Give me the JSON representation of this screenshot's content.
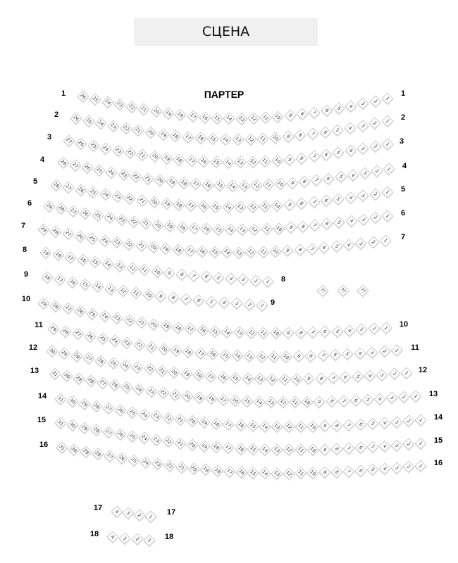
{
  "stage_label": "СЦЕНА",
  "hall_label": "ПАРТЕР",
  "colors": {
    "seat_border": "#c9c9c9",
    "stage_bg": "#f0f0f0"
  },
  "rows": [
    {
      "left": "1",
      "right": "1",
      "seats": [
        26,
        25,
        24,
        23,
        22,
        21,
        20,
        19,
        18,
        17,
        16,
        15,
        14,
        13,
        12,
        11,
        10,
        9,
        8,
        7,
        6,
        5,
        4,
        3,
        2,
        1
      ]
    },
    {
      "left": "2",
      "right": "2",
      "seats": [
        26,
        25,
        24,
        23,
        22,
        21,
        20,
        19,
        18,
        17,
        16,
        15,
        14,
        13,
        12,
        11,
        10,
        9,
        8,
        7,
        6,
        5,
        4,
        3,
        2,
        1
      ]
    },
    {
      "left": "3",
      "right": "3",
      "seats": [
        27,
        26,
        25,
        24,
        23,
        22,
        21,
        20,
        19,
        18,
        17,
        16,
        15,
        14,
        13,
        12,
        11,
        10,
        9,
        8,
        7,
        6,
        5,
        4,
        3,
        2,
        1
      ]
    },
    {
      "left": "4",
      "right": "4",
      "seats": [
        28,
        27,
        26,
        25,
        24,
        23,
        22,
        21,
        20,
        19,
        18,
        17,
        16,
        15,
        14,
        13,
        12,
        11,
        10,
        9,
        8,
        7,
        6,
        5,
        4,
        3,
        2,
        1
      ]
    },
    {
      "left": "5",
      "right": "5",
      "seats": [
        28,
        27,
        26,
        25,
        24,
        23,
        22,
        21,
        20,
        19,
        18,
        17,
        16,
        15,
        14,
        13,
        12,
        11,
        10,
        9,
        8,
        7,
        6,
        5,
        4,
        3,
        2,
        1
      ]
    },
    {
      "left": "6",
      "right": "6",
      "seats": [
        29,
        28,
        27,
        26,
        25,
        24,
        23,
        22,
        21,
        20,
        19,
        18,
        17,
        16,
        15,
        14,
        13,
        12,
        11,
        10,
        9,
        8,
        7,
        6,
        5,
        4,
        3,
        2,
        1
      ]
    },
    {
      "left": "7",
      "right": "7",
      "seats": [
        29,
        28,
        27,
        26,
        25,
        24,
        23,
        22,
        21,
        20,
        19,
        18,
        17,
        16,
        15,
        14,
        13,
        12,
        11,
        10,
        9,
        8,
        7,
        6,
        5,
        4,
        3,
        2,
        1
      ]
    },
    {
      "left": "8",
      "right": "8",
      "seats": [
        19,
        18,
        17,
        16,
        15,
        14,
        13,
        12,
        11,
        10,
        9,
        8,
        7,
        6,
        5,
        4,
        3,
        2,
        1
      ]
    },
    {
      "left": "9",
      "right": "9",
      "seats": [
        18,
        17,
        16,
        15,
        14,
        13,
        12,
        11,
        10,
        9,
        8,
        7,
        6,
        5,
        4,
        3,
        2,
        1
      ]
    },
    {
      "left": "10",
      "right": "10",
      "seats": [
        29,
        28,
        27,
        26,
        25,
        24,
        23,
        22,
        21,
        20,
        19,
        18,
        17,
        16,
        15,
        14,
        13,
        12,
        11,
        10,
        9,
        8,
        7,
        6,
        5,
        4,
        3,
        2,
        1
      ]
    },
    {
      "left": "11",
      "right": "11",
      "seats": [
        29,
        28,
        27,
        26,
        25,
        24,
        23,
        22,
        21,
        20,
        19,
        18,
        17,
        16,
        15,
        14,
        13,
        12,
        11,
        10,
        9,
        8,
        7,
        6,
        5,
        4,
        3,
        2,
        1
      ]
    },
    {
      "left": "12",
      "right": "12",
      "seats": [
        30,
        29,
        28,
        27,
        26,
        25,
        24,
        23,
        22,
        21,
        20,
        19,
        18,
        17,
        16,
        15,
        14,
        13,
        12,
        11,
        10,
        9,
        8,
        7,
        6,
        5,
        4,
        3,
        2,
        1
      ]
    },
    {
      "left": "13",
      "right": "13",
      "seats": [
        31,
        30,
        29,
        28,
        27,
        26,
        25,
        24,
        23,
        22,
        21,
        20,
        19,
        18,
        17,
        16,
        15,
        14,
        13,
        12,
        11,
        10,
        9,
        8,
        7,
        6,
        5,
        4,
        3,
        2,
        1
      ]
    },
    {
      "left": "14",
      "right": "14",
      "seats": [
        31,
        30,
        29,
        28,
        27,
        26,
        25,
        24,
        23,
        22,
        21,
        20,
        19,
        18,
        17,
        16,
        15,
        14,
        13,
        12,
        11,
        10,
        9,
        8,
        7,
        6,
        5,
        4,
        3,
        2,
        1
      ]
    },
    {
      "left": "15",
      "right": "15",
      "seats": [
        31,
        30,
        29,
        28,
        27,
        26,
        25,
        24,
        23,
        22,
        21,
        20,
        19,
        18,
        17,
        16,
        15,
        14,
        13,
        12,
        11,
        10,
        9,
        8,
        7,
        6,
        5,
        4,
        3,
        2,
        1
      ]
    },
    {
      "left": "16",
      "right": "16",
      "seats": [
        31,
        30,
        29,
        28,
        27,
        26,
        25,
        24,
        23,
        22,
        21,
        20,
        19,
        18,
        17,
        16,
        15,
        14,
        13,
        12,
        11,
        10,
        9,
        8,
        7,
        6,
        5,
        4,
        3,
        2,
        1
      ]
    },
    {
      "left": "17",
      "right": "17",
      "seats": [
        4,
        3,
        2,
        1
      ]
    },
    {
      "left": "18",
      "right": "18",
      "seats": [
        4,
        3,
        2,
        1
      ]
    }
  ],
  "extra_seats": [
    "??",
    "??",
    "??"
  ]
}
